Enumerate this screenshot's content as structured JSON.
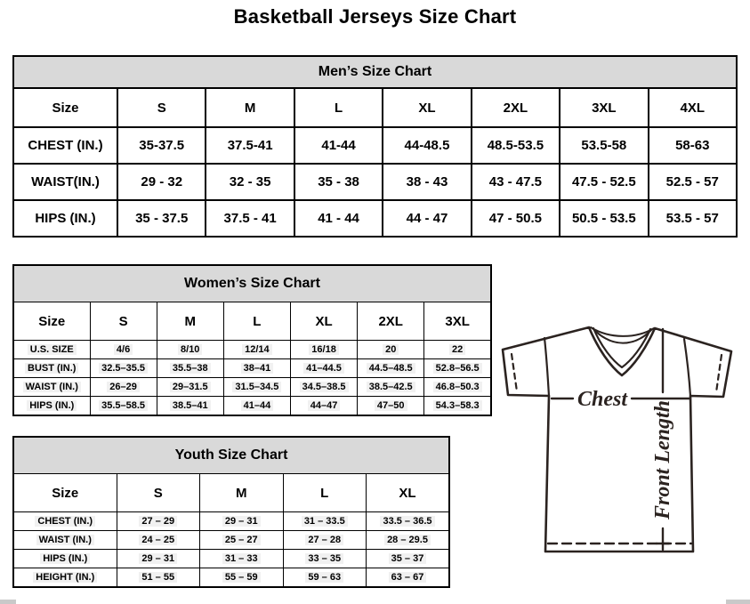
{
  "title": "Basketball Jerseys Size Chart",
  "tables": {
    "men": {
      "title": "Men’s Size Chart",
      "columns": [
        "Size",
        "S",
        "M",
        "L",
        "XL",
        "2XL",
        "3XL",
        "4XL"
      ],
      "rows": [
        {
          "label": "CHEST (IN.)",
          "values": [
            "35-37.5",
            "37.5-41",
            "41-44",
            "44-48.5",
            "48.5-53.5",
            "53.5-58",
            "58-63"
          ]
        },
        {
          "label": "WAIST(IN.)",
          "values": [
            "29 - 32",
            "32 - 35",
            "35 - 38",
            "38 - 43",
            "43 - 47.5",
            "47.5 - 52.5",
            "52.5 - 57"
          ]
        },
        {
          "label": "HIPS (IN.)",
          "values": [
            "35 - 37.5",
            "37.5 - 41",
            "41 - 44",
            "44 - 47",
            "47 - 50.5",
            "50.5 - 53.5",
            "53.5 - 57"
          ]
        }
      ]
    },
    "women": {
      "title": "Women’s Size Chart",
      "columns": [
        "Size",
        "S",
        "M",
        "L",
        "XL",
        "2XL",
        "3XL"
      ],
      "rows": [
        {
          "label": "U.S. SIZE",
          "values": [
            "4/6",
            "8/10",
            "12/14",
            "16/18",
            "20",
            "22"
          ]
        },
        {
          "label": "BUST (IN.)",
          "values": [
            "32.5–35.5",
            "35.5–38",
            "38–41",
            "41–44.5",
            "44.5–48.5",
            "52.8–56.5"
          ]
        },
        {
          "label": "WAIST (IN.)",
          "values": [
            "26–29",
            "29–31.5",
            "31.5–34.5",
            "34.5–38.5",
            "38.5–42.5",
            "46.8–50.3"
          ]
        },
        {
          "label": "HIPS (IN.)",
          "values": [
            "35.5–58.5",
            "38.5–41",
            "41–44",
            "44–47",
            "47–50",
            "54.3–58.3"
          ]
        }
      ]
    },
    "youth": {
      "title": "Youth Size Chart",
      "columns": [
        "Size",
        "S",
        "M",
        "L",
        "XL"
      ],
      "rows": [
        {
          "label": "CHEST (IN.)",
          "values": [
            "27 – 29",
            "29 – 31",
            "31 – 33.5",
            "33.5 – 36.5"
          ]
        },
        {
          "label": "WAIST (IN.)",
          "values": [
            "24 – 25",
            "25 – 27",
            "27 – 28",
            "28 – 29.5"
          ]
        },
        {
          "label": "HIPS (IN.)",
          "values": [
            "29 – 31",
            "31 – 33",
            "33 – 35",
            "35 – 37"
          ]
        },
        {
          "label": "HEIGHT (IN.)",
          "values": [
            "51 – 55",
            "55 – 59",
            "59 – 63",
            "63 – 67"
          ]
        }
      ]
    }
  },
  "diagram": {
    "chest_label": "Chest",
    "front_length_label": "Front Length"
  },
  "colors": {
    "table_header_bg": "#d9d9d9",
    "table_border": "#000000",
    "diagram_stroke": "#2b2320"
  }
}
